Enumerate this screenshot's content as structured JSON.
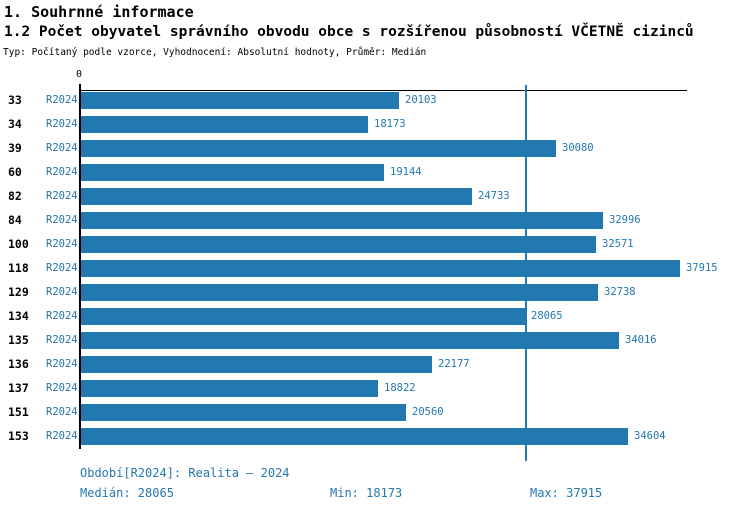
{
  "header": {
    "title": "1. Souhrnné informace",
    "subtitle": "1.2 Počet obyvatel správního obvodu obce s rozšířenou působností VČETNĚ cizinců",
    "meta": "Typ: Počítaný podle vzorce, Vyhodnocení: Absolutní hodnoty, Průměr: Medián"
  },
  "chart_data": {
    "type": "bar",
    "orientation": "horizontal",
    "title": "1.2 Počet obyvatel správního obvodu obce s rozšířenou působností VČETNĚ cizinců",
    "xlabel": "",
    "ylabel": "",
    "categories": [
      "33",
      "34",
      "39",
      "60",
      "82",
      "84",
      "100",
      "118",
      "129",
      "134",
      "135",
      "136",
      "137",
      "151",
      "153"
    ],
    "series_label": "R2024",
    "values": [
      20103,
      18173,
      30080,
      19144,
      24733,
      32996,
      32571,
      37915,
      32738,
      28065,
      34016,
      22177,
      18822,
      20560,
      34604
    ],
    "xlim": [
      0,
      38340
    ],
    "zero_tick_label": "0",
    "median_line_value": 28065,
    "bar_color": "#2478b0",
    "grid": false,
    "legend_position": "none"
  },
  "footer": {
    "period": "Období[R2024]: Realita – 2024",
    "median": "Medián: 28065",
    "min": "Min: 18173",
    "max": "Max: 37915"
  },
  "colors": {
    "accent": "#2478b0",
    "text": "#000000",
    "background": "#ffffff"
  }
}
